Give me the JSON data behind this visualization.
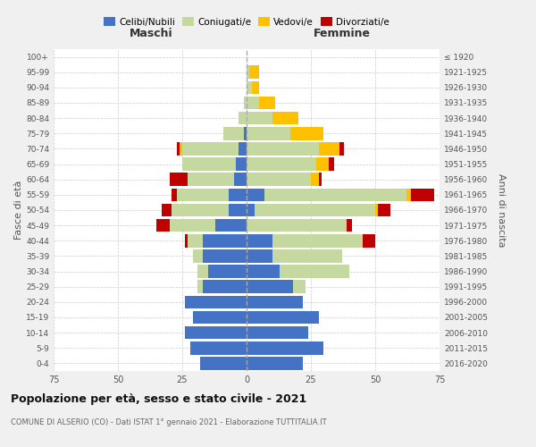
{
  "age_groups": [
    "0-4",
    "5-9",
    "10-14",
    "15-19",
    "20-24",
    "25-29",
    "30-34",
    "35-39",
    "40-44",
    "45-49",
    "50-54",
    "55-59",
    "60-64",
    "65-69",
    "70-74",
    "75-79",
    "80-84",
    "85-89",
    "90-94",
    "95-99",
    "100+"
  ],
  "birth_years": [
    "2016-2020",
    "2011-2015",
    "2006-2010",
    "2001-2005",
    "1996-2000",
    "1991-1995",
    "1986-1990",
    "1981-1985",
    "1976-1980",
    "1971-1975",
    "1966-1970",
    "1961-1965",
    "1956-1960",
    "1951-1955",
    "1946-1950",
    "1941-1945",
    "1936-1940",
    "1931-1935",
    "1926-1930",
    "1921-1925",
    "≤ 1920"
  ],
  "colors": {
    "celibi": "#4472c4",
    "coniugati": "#c5d8a0",
    "vedovi": "#ffc000",
    "divorziati": "#c00000"
  },
  "maschi": {
    "celibi": [
      18,
      22,
      24,
      21,
      24,
      17,
      15,
      17,
      17,
      12,
      7,
      7,
      5,
      4,
      3,
      1,
      0,
      0,
      0,
      0,
      0
    ],
    "coniugati": [
      0,
      0,
      0,
      0,
      0,
      2,
      4,
      4,
      6,
      18,
      22,
      20,
      18,
      21,
      22,
      8,
      3,
      1,
      0,
      0,
      0
    ],
    "vedovi": [
      0,
      0,
      0,
      0,
      0,
      0,
      0,
      0,
      0,
      0,
      0,
      0,
      0,
      0,
      1,
      0,
      0,
      0,
      0,
      0,
      0
    ],
    "divorziati": [
      0,
      0,
      0,
      0,
      0,
      0,
      0,
      0,
      1,
      5,
      4,
      2,
      7,
      0,
      1,
      0,
      0,
      0,
      0,
      0,
      0
    ]
  },
  "femmine": {
    "celibi": [
      22,
      30,
      24,
      28,
      22,
      18,
      13,
      10,
      10,
      0,
      3,
      7,
      0,
      0,
      0,
      0,
      0,
      0,
      0,
      0,
      0
    ],
    "coniugati": [
      0,
      0,
      0,
      0,
      0,
      5,
      27,
      27,
      35,
      39,
      47,
      55,
      25,
      27,
      28,
      17,
      10,
      5,
      2,
      1,
      0
    ],
    "vedovi": [
      0,
      0,
      0,
      0,
      0,
      0,
      0,
      0,
      0,
      0,
      1,
      2,
      3,
      5,
      8,
      13,
      10,
      6,
      3,
      4,
      0
    ],
    "divorziati": [
      0,
      0,
      0,
      0,
      0,
      0,
      0,
      0,
      5,
      2,
      5,
      9,
      1,
      2,
      2,
      0,
      0,
      0,
      0,
      0,
      0
    ]
  },
  "xlim": 75,
  "title": "Popolazione per età, sesso e stato civile - 2021",
  "subtitle": "COMUNE DI ALSERIO (CO) - Dati ISTAT 1° gennaio 2021 - Elaborazione TUTTITALIA.IT",
  "ylabel_left": "Fasce di età",
  "ylabel_right": "Anni di nascita",
  "xlabel_maschi": "Maschi",
  "xlabel_femmine": "Femmine",
  "legend_labels": [
    "Celibi/Nubili",
    "Coniugati/e",
    "Vedovi/e",
    "Divorziati/e"
  ],
  "bg_color": "#f0f0f0",
  "plot_bg": "#ffffff"
}
